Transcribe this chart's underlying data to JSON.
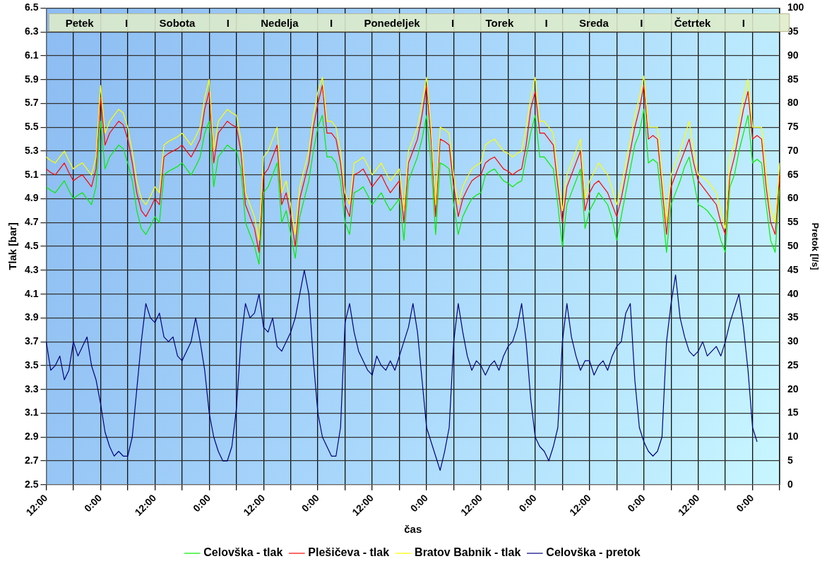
{
  "chart_data": {
    "type": "line",
    "xlabel": "čas",
    "ylabel": "Tlak [bar]",
    "y2label": "Pretok [l/s]",
    "categories": [
      "12:00",
      null,
      null,
      null,
      null,
      null,
      null,
      null,
      null,
      null,
      null,
      null,
      "0:00",
      null,
      null,
      null,
      null,
      null,
      null,
      null,
      null,
      null,
      null,
      null,
      "12:00",
      null,
      null,
      null,
      null,
      null,
      null,
      null,
      null,
      null,
      null,
      null,
      "0:00",
      null,
      null,
      null,
      null,
      null,
      null,
      null,
      null,
      null,
      null,
      null,
      "12:00",
      null,
      null,
      null,
      null,
      null,
      null,
      null,
      null,
      null,
      null,
      null,
      "0:00",
      null,
      null,
      null,
      null,
      null,
      null,
      null,
      null,
      null,
      null,
      null,
      "12:00",
      null,
      null,
      null,
      null,
      null,
      null,
      null,
      null,
      null,
      null,
      null,
      "0:00",
      null,
      null,
      null,
      null,
      null,
      null,
      null,
      null,
      null,
      null,
      null,
      "12:00",
      null,
      null,
      null,
      null,
      null,
      null,
      null,
      null,
      null,
      null,
      null,
      "0:00",
      null,
      null,
      null,
      null,
      null,
      null,
      null,
      null,
      null,
      null,
      null,
      "12:00",
      null,
      null,
      null,
      null,
      null,
      null,
      null,
      null,
      null,
      null,
      null,
      "0:00",
      null,
      null,
      null,
      null,
      null,
      null,
      null,
      null,
      null,
      null,
      null,
      "12:00",
      null,
      null,
      null,
      null,
      null,
      null,
      null,
      null,
      null,
      null,
      null,
      "0:00",
      null,
      null,
      null,
      null,
      null,
      null
    ],
    "ylim": [
      2.5,
      6.5
    ],
    "yticks": [
      2.5,
      2.7,
      2.9,
      3.1,
      3.3,
      3.5,
      3.7,
      3.9,
      4.1,
      4.3,
      4.5,
      4.7,
      4.9,
      5.1,
      5.3,
      5.5,
      5.7,
      5.9,
      6.1,
      6.3,
      6.5
    ],
    "y2lim": [
      0,
      100
    ],
    "y2ticks": [
      0,
      5,
      10,
      15,
      20,
      25,
      30,
      35,
      40,
      45,
      50,
      55,
      60,
      65,
      70,
      75,
      80,
      85,
      90,
      95,
      100
    ],
    "grid": true,
    "legend": "bottom",
    "annotations": [
      "Petek",
      "I",
      "Sobota",
      "I",
      "Nedelja",
      "I",
      "Ponedeljek",
      "I",
      "Torek",
      "I",
      "Sreda",
      "I",
      "Četrtek",
      "I"
    ],
    "series": [
      {
        "name": "Celovška - tlak",
        "color": "#00ee00",
        "values": [
          5.0,
          4.97,
          4.95,
          5.0,
          5.05,
          4.97,
          4.9,
          4.93,
          4.95,
          4.9,
          4.85,
          5.0,
          5.55,
          5.15,
          5.25,
          5.3,
          5.35,
          5.32,
          5.2,
          5.05,
          4.8,
          4.65,
          4.6,
          4.67,
          4.75,
          4.7,
          5.1,
          5.13,
          5.15,
          5.17,
          5.2,
          5.15,
          5.1,
          5.17,
          5.25,
          5.45,
          5.55,
          5.0,
          5.25,
          5.3,
          5.35,
          5.32,
          5.3,
          5.15,
          4.7,
          4.6,
          4.5,
          4.35,
          4.95,
          5.0,
          5.1,
          5.2,
          4.7,
          4.8,
          4.6,
          4.4,
          4.75,
          4.9,
          5.05,
          5.3,
          5.5,
          5.6,
          5.25,
          5.25,
          5.2,
          5.05,
          4.7,
          4.6,
          4.95,
          4.97,
          5.0,
          4.93,
          4.85,
          4.9,
          4.95,
          4.87,
          4.8,
          4.85,
          4.9,
          4.55,
          5.05,
          5.15,
          5.25,
          5.4,
          5.6,
          5.2,
          4.6,
          5.2,
          5.18,
          5.15,
          4.85,
          4.6,
          4.75,
          4.83,
          4.9,
          4.93,
          4.95,
          5.1,
          5.13,
          5.15,
          5.1,
          5.05,
          5.03,
          5.0,
          5.03,
          5.05,
          5.25,
          5.45,
          5.6,
          5.25,
          5.25,
          5.2,
          5.15,
          4.85,
          4.5,
          4.85,
          4.95,
          5.05,
          5.15,
          4.65,
          4.8,
          4.87,
          4.95,
          4.9,
          4.85,
          4.73,
          4.55,
          4.75,
          4.95,
          5.15,
          5.35,
          5.45,
          5.65,
          5.2,
          5.23,
          5.2,
          4.85,
          4.45,
          4.85,
          4.95,
          5.05,
          5.17,
          5.25,
          5.05,
          4.85,
          4.83,
          4.8,
          4.75,
          4.7,
          4.55,
          4.45,
          5.0,
          5.1,
          5.3,
          5.45,
          5.6,
          5.2,
          5.23,
          5.2,
          4.85,
          4.55,
          4.45,
          5.0
        ]
      },
      {
        "name": "Plešičeva - tlak",
        "color": "#ff0000",
        "values": [
          5.15,
          5.12,
          5.1,
          5.15,
          5.2,
          5.12,
          5.05,
          5.08,
          5.1,
          5.05,
          5.0,
          5.15,
          5.75,
          5.35,
          5.45,
          5.5,
          5.55,
          5.52,
          5.4,
          5.2,
          4.95,
          4.8,
          4.75,
          4.82,
          4.9,
          4.85,
          5.25,
          5.28,
          5.3,
          5.32,
          5.35,
          5.3,
          5.25,
          5.32,
          5.4,
          5.65,
          5.8,
          5.2,
          5.45,
          5.5,
          5.55,
          5.52,
          5.5,
          5.3,
          4.85,
          4.75,
          4.65,
          4.45,
          5.1,
          5.15,
          5.25,
          5.35,
          4.85,
          4.95,
          4.75,
          4.5,
          4.9,
          5.05,
          5.2,
          5.5,
          5.7,
          5.85,
          5.45,
          5.45,
          5.4,
          5.2,
          4.85,
          4.75,
          5.1,
          5.12,
          5.15,
          5.08,
          5.0,
          5.05,
          5.1,
          5.02,
          4.95,
          5.0,
          5.05,
          4.7,
          5.2,
          5.3,
          5.4,
          5.6,
          5.85,
          5.4,
          4.75,
          5.4,
          5.38,
          5.35,
          5.0,
          4.75,
          4.9,
          4.98,
          5.05,
          5.08,
          5.1,
          5.2,
          5.23,
          5.25,
          5.2,
          5.15,
          5.13,
          5.1,
          5.13,
          5.15,
          5.35,
          5.65,
          5.8,
          5.45,
          5.45,
          5.4,
          5.35,
          5.0,
          4.7,
          5.0,
          5.1,
          5.2,
          5.3,
          4.8,
          4.95,
          5.02,
          5.05,
          5.0,
          4.95,
          4.85,
          4.75,
          4.9,
          5.1,
          5.3,
          5.5,
          5.65,
          5.85,
          5.4,
          5.43,
          5.4,
          5.0,
          4.6,
          5.0,
          5.1,
          5.2,
          5.3,
          5.4,
          5.2,
          5.05,
          5.0,
          4.95,
          4.9,
          4.85,
          4.7,
          4.6,
          5.1,
          5.25,
          5.45,
          5.65,
          5.8,
          5.4,
          5.43,
          5.4,
          5.0,
          4.7,
          4.6,
          5.1
        ]
      },
      {
        "name": "Bratov Babnik - tlak",
        "color": "#ffff00",
        "values": [
          5.25,
          5.22,
          5.2,
          5.25,
          5.3,
          5.22,
          5.15,
          5.18,
          5.2,
          5.15,
          5.1,
          5.25,
          5.85,
          5.45,
          5.55,
          5.6,
          5.65,
          5.62,
          5.5,
          5.3,
          5.05,
          4.9,
          4.85,
          4.92,
          5.0,
          4.95,
          5.35,
          5.38,
          5.4,
          5.42,
          5.45,
          5.4,
          5.35,
          5.42,
          5.5,
          5.75,
          5.9,
          5.3,
          5.55,
          5.6,
          5.65,
          5.62,
          5.6,
          5.4,
          4.95,
          4.85,
          4.75,
          4.55,
          5.25,
          5.3,
          5.4,
          5.5,
          4.95,
          5.05,
          4.85,
          4.6,
          5.0,
          5.15,
          5.3,
          5.6,
          5.8,
          5.92,
          5.55,
          5.55,
          5.5,
          5.3,
          4.95,
          4.85,
          5.2,
          5.22,
          5.25,
          5.18,
          5.1,
          5.15,
          5.2,
          5.12,
          5.05,
          5.1,
          5.15,
          4.8,
          5.3,
          5.4,
          5.5,
          5.7,
          5.92,
          5.5,
          4.85,
          5.5,
          5.48,
          5.45,
          5.1,
          4.85,
          5.0,
          5.08,
          5.15,
          5.18,
          5.2,
          5.35,
          5.38,
          5.4,
          5.35,
          5.3,
          5.28,
          5.25,
          5.28,
          5.3,
          5.5,
          5.75,
          5.92,
          5.55,
          5.55,
          5.5,
          5.45,
          5.1,
          4.8,
          5.1,
          5.2,
          5.3,
          5.4,
          4.9,
          5.05,
          5.12,
          5.2,
          5.15,
          5.1,
          4.98,
          4.85,
          5.0,
          5.2,
          5.4,
          5.6,
          5.75,
          5.93,
          5.5,
          5.5,
          5.5,
          5.1,
          4.7,
          5.1,
          5.2,
          5.3,
          5.42,
          5.55,
          5.3,
          5.1,
          5.08,
          5.05,
          5.0,
          4.95,
          4.8,
          4.65,
          5.25,
          5.35,
          5.55,
          5.75,
          5.9,
          5.5,
          5.5,
          5.5,
          5.1,
          4.8,
          4.7,
          5.2
        ]
      },
      {
        "name": "Celovška - pretok",
        "color": "#000080",
        "axis": "y2",
        "values": [
          30,
          24,
          25,
          27,
          22,
          24,
          30,
          27,
          29,
          31,
          25,
          22,
          17,
          11,
          8,
          6,
          7,
          6,
          6,
          10,
          20,
          30,
          38,
          35,
          34,
          36,
          31,
          30,
          31,
          27,
          26,
          28,
          30,
          35,
          30,
          24,
          15,
          10,
          7,
          5,
          5,
          8,
          16,
          30,
          38,
          35,
          36,
          40,
          33,
          32,
          35,
          29,
          28,
          30,
          32,
          35,
          40,
          45,
          40,
          26,
          15,
          10,
          8,
          6,
          6,
          12,
          34,
          38,
          32,
          28,
          26,
          24,
          23,
          27,
          25,
          24,
          26,
          24,
          27,
          30,
          33,
          38,
          32,
          22,
          12,
          9,
          6,
          3,
          7,
          12,
          30,
          38,
          32,
          27,
          24,
          26,
          25,
          23,
          25,
          26,
          24,
          27,
          29,
          30,
          33,
          38,
          30,
          18,
          10,
          8,
          7,
          5,
          8,
          12,
          30,
          38,
          31,
          27,
          24,
          26,
          26,
          23,
          25,
          26,
          24,
          27,
          29,
          30,
          36,
          38,
          22,
          12,
          9,
          7,
          6,
          7,
          10,
          30,
          38,
          44,
          35,
          31,
          28,
          27,
          28,
          30,
          27,
          28,
          29,
          27,
          30,
          34,
          37,
          40,
          33,
          24,
          12,
          9,
          null,
          null,
          null,
          null,
          null
        ]
      }
    ]
  }
}
